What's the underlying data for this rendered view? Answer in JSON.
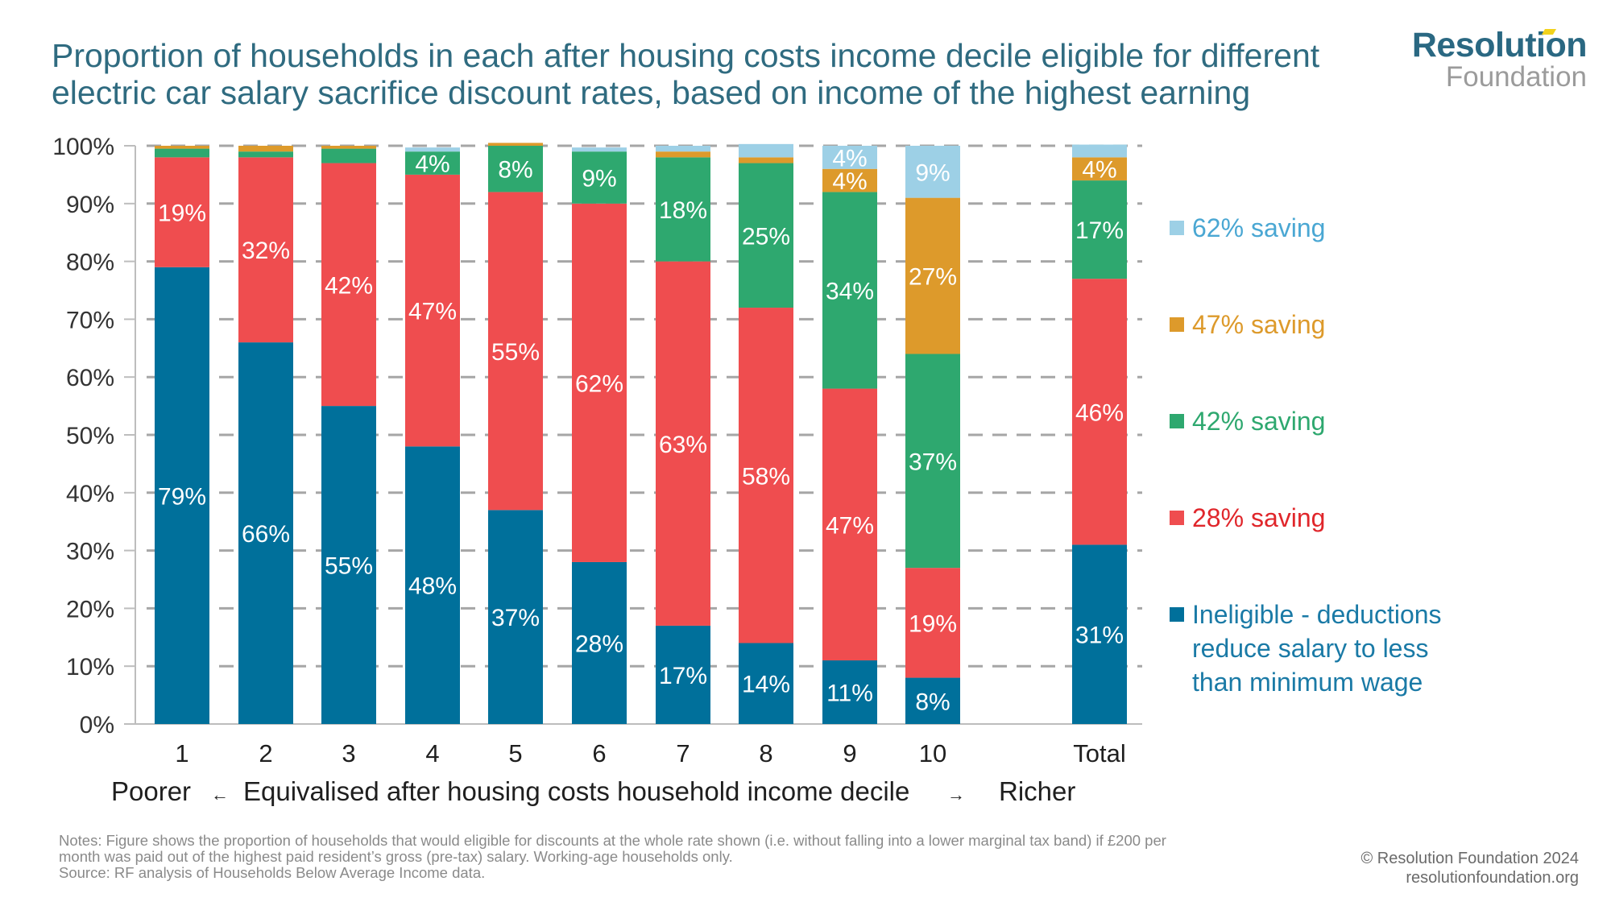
{
  "header": {
    "title": "Proportion of households in each after housing costs income decile eligible for different electric car salary sacrifice discount rates, based on income of the highest earning",
    "logo_line1": "Resolution",
    "logo_line2": "Foundation"
  },
  "colors": {
    "ineligible": "#00709b",
    "saving28": "#ef4d4f",
    "saving42": "#2ea86f",
    "saving47": "#dd9a2b",
    "saving62": "#9dd0e6",
    "title": "#2f6b80",
    "grid": "#a6a6a6"
  },
  "chart_data": {
    "type": "bar",
    "stacked": true,
    "title": "Proportion of households in each after housing costs income decile eligible for different electric car salary sacrifice discount rates, based on income of the highest earning",
    "xlabel": "Equivalised after housing costs household income decile",
    "xlabel_left": "Poorer",
    "xlabel_right": "Richer",
    "arrow_left": "←",
    "arrow_right": "→",
    "ylabel": "",
    "ylim": [
      0,
      100
    ],
    "yticks": [
      "0%",
      "10%",
      "20%",
      "30%",
      "40%",
      "50%",
      "60%",
      "70%",
      "80%",
      "90%",
      "100%"
    ],
    "grid": true,
    "legend_position": "right",
    "categories": [
      "1",
      "2",
      "3",
      "4",
      "5",
      "6",
      "7",
      "8",
      "9",
      "10",
      "Total"
    ],
    "series": [
      {
        "name": "Ineligible - deductions reduce salary to less than minimum wage",
        "key": "ineligible",
        "values": [
          79,
          66,
          55,
          48,
          37,
          28,
          17,
          14,
          11,
          8,
          31
        ],
        "labels": [
          "79%",
          "66%",
          "55%",
          "48%",
          "37%",
          "28%",
          "17%",
          "14%",
          "11%",
          "8%",
          "31%"
        ]
      },
      {
        "name": "28% saving",
        "key": "saving28",
        "values": [
          19,
          32,
          42,
          47,
          55,
          62,
          63,
          58,
          47,
          19,
          46
        ],
        "labels": [
          "19%",
          "32%",
          "42%",
          "47%",
          "55%",
          "62%",
          "63%",
          "58%",
          "47%",
          "19%",
          "46%"
        ]
      },
      {
        "name": "42% saving",
        "key": "saving42",
        "values": [
          1.5,
          1,
          2.5,
          4,
          8,
          9,
          18,
          25,
          34,
          37,
          17
        ],
        "labels": [
          "",
          "",
          "",
          "4%",
          "8%",
          "9%",
          "18%",
          "25%",
          "34%",
          "37%",
          "17%"
        ]
      },
      {
        "name": "47% saving",
        "key": "saving47",
        "values": [
          0.5,
          1,
          0.5,
          0,
          0.5,
          0,
          1,
          1,
          4,
          27,
          4
        ],
        "labels": [
          "",
          "",
          "",
          "",
          "",
          "",
          "",
          "",
          "4%",
          "27%",
          "4%"
        ]
      },
      {
        "name": "62% saving",
        "key": "saving62",
        "values": [
          0,
          0,
          0,
          0.7,
          0,
          0.7,
          1,
          2.3,
          4,
          9,
          2.2
        ],
        "labels": [
          "",
          "",
          "",
          "",
          "",
          "",
          "",
          "",
          "4%",
          "9%",
          ""
        ]
      }
    ]
  },
  "legend": [
    {
      "label": "62% saving",
      "key": "saving62",
      "text_color": "#4aa7d3"
    },
    {
      "label": "47% saving",
      "key": "saving47",
      "text_color": "#dd9a2b"
    },
    {
      "label": "42% saving",
      "key": "saving42",
      "text_color": "#2ea86f"
    },
    {
      "label": "28% saving",
      "key": "saving28",
      "text_color": "#e0262b"
    },
    {
      "label": "Ineligible - deductions reduce salary to less than minimum wage",
      "key": "ineligible",
      "text_color": "#1a7aa6",
      "lines": [
        "Ineligible - deductions",
        "reduce salary to less",
        "than minimum wage"
      ]
    }
  ],
  "footer": {
    "notes_line1": "Notes: Figure shows the proportion of households that would eligible for discounts at the whole rate shown (i.e. without falling into a lower marginal tax band) if £200 per",
    "notes_line2": "month was paid out of the highest paid resident’s gross (pre-tax) salary. Working-age households only.",
    "source": "Source: RF analysis of Households Below Average Income data.",
    "copyright": "© Resolution Foundation 2024",
    "website": "resolutionfoundation.org"
  }
}
